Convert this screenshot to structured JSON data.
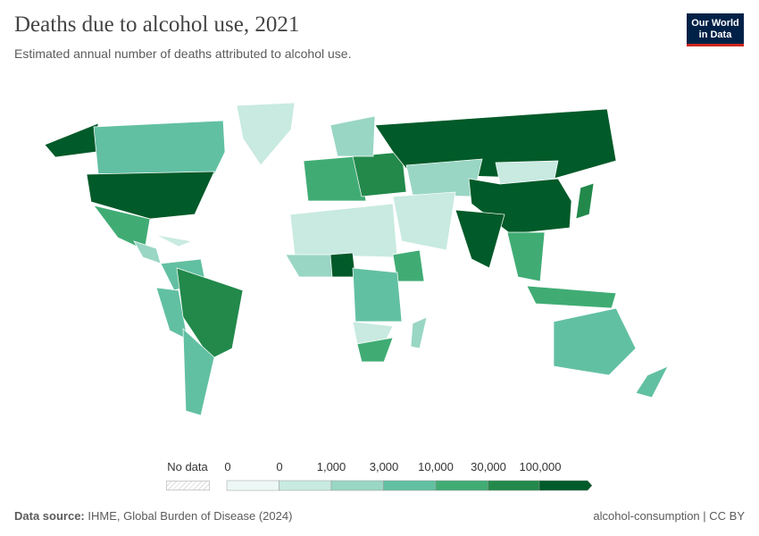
{
  "title": "Deaths due to alcohol use, 2021",
  "subtitle": "Estimated annual number of deaths attributed to alcohol use.",
  "logo": {
    "line1": "Our World",
    "line2": "in Data"
  },
  "legend": {
    "no_data": "No data",
    "ticks": [
      "0",
      "0",
      "1,000",
      "3,000",
      "10,000",
      "30,000",
      "100,000"
    ],
    "colors": [
      "#edf8f6",
      "#c8eae0",
      "#99d6c4",
      "#62c0a2",
      "#40ac74",
      "#22894b",
      "#005a29"
    ],
    "no_data_color": "#e0e0e0"
  },
  "footer": {
    "source_label": "Data source:",
    "source": "IHME, Global Burden of Disease (2024)",
    "license": "alcohol-consumption | CC BY"
  }
}
